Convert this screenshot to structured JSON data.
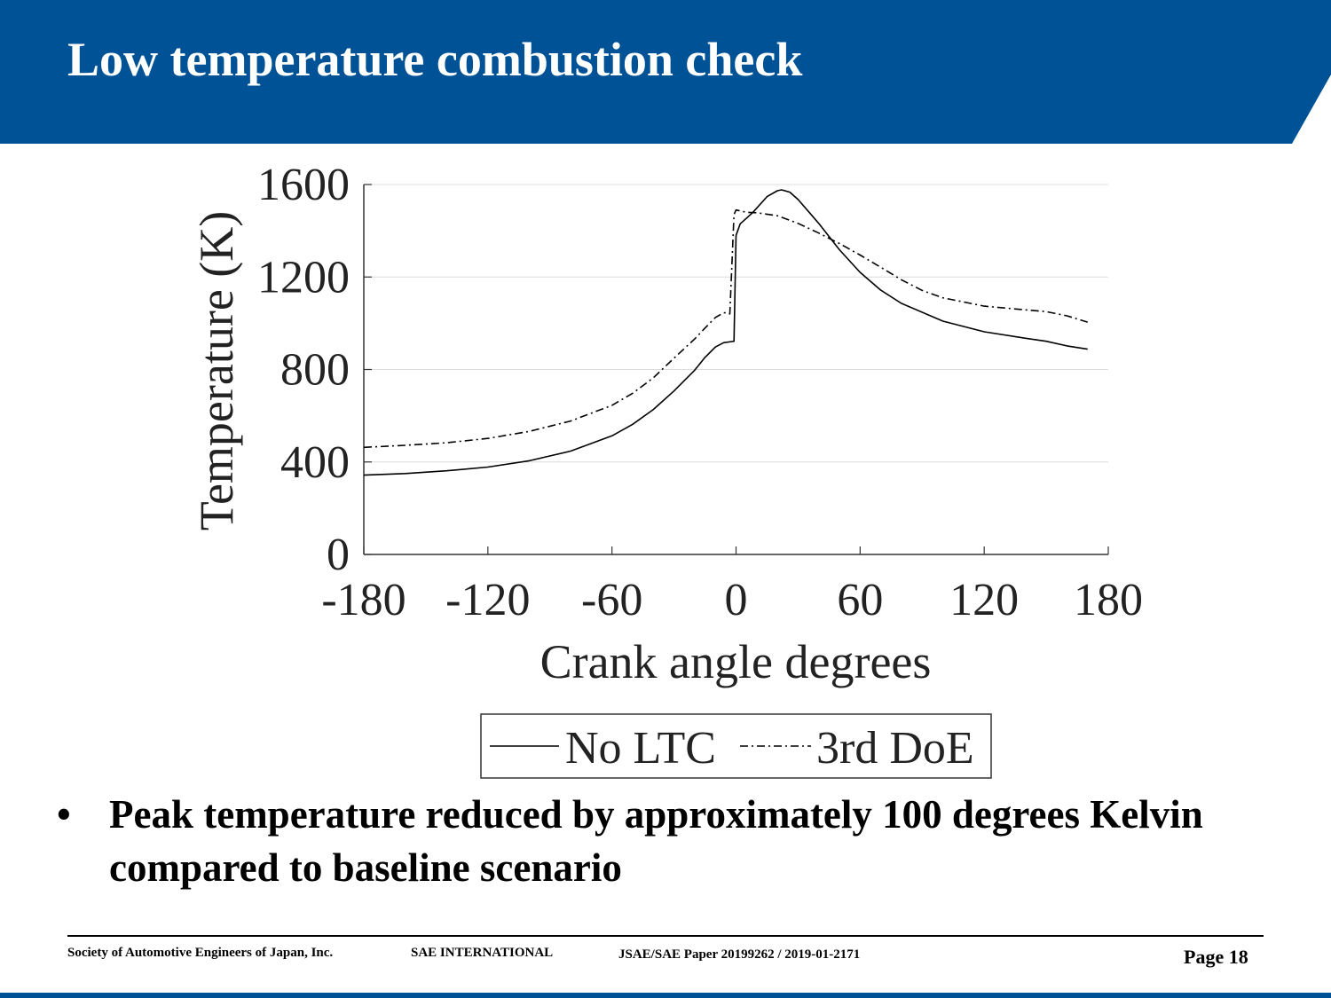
{
  "slide": {
    "title": "Low temperature combustion check",
    "accent_color": "#005296",
    "bullet": "Peak temperature reduced by approximately 100 degrees Kelvin compared to baseline scenario"
  },
  "footer": {
    "org1": "Society of Automotive Engineers of Japan, Inc.",
    "org2": "SAE INTERNATIONAL",
    "paper": "JSAE/SAE  Paper 20199262 / 2019-01-2171",
    "page": "Page 18"
  },
  "chart_data": {
    "type": "line",
    "title": "",
    "xlabel": "Crank angle degrees",
    "ylabel": "Temperature (K)",
    "xlim": [
      -180,
      180
    ],
    "ylim": [
      0,
      1600
    ],
    "xticks": [
      -180,
      -120,
      -60,
      0,
      60,
      120,
      180
    ],
    "yticks": [
      0,
      400,
      800,
      1200,
      1600
    ],
    "grid": "horizontal",
    "legend_position": "bottom",
    "series": [
      {
        "name": "No LTC",
        "style": "solid",
        "color": "#000000",
        "points": [
          [
            -180,
            343
          ],
          [
            -160,
            350
          ],
          [
            -140,
            362
          ],
          [
            -120,
            378
          ],
          [
            -100,
            405
          ],
          [
            -80,
            447
          ],
          [
            -60,
            513
          ],
          [
            -50,
            563
          ],
          [
            -40,
            627
          ],
          [
            -30,
            707
          ],
          [
            -20,
            797
          ],
          [
            -15,
            852
          ],
          [
            -10,
            897
          ],
          [
            -6,
            916
          ],
          [
            -2,
            921
          ],
          [
            -1,
            922
          ],
          [
            0,
            1380
          ],
          [
            2,
            1430
          ],
          [
            8,
            1478
          ],
          [
            15,
            1548
          ],
          [
            20,
            1573
          ],
          [
            22,
            1577
          ],
          [
            26,
            1567
          ],
          [
            30,
            1535
          ],
          [
            40,
            1432
          ],
          [
            50,
            1318
          ],
          [
            60,
            1220
          ],
          [
            70,
            1143
          ],
          [
            80,
            1086
          ],
          [
            100,
            1009
          ],
          [
            120,
            963
          ],
          [
            140,
            935
          ],
          [
            150,
            922
          ],
          [
            160,
            902
          ],
          [
            170,
            888
          ]
        ]
      },
      {
        "name": "3rd DoE",
        "style": "dashdot",
        "color": "#000000",
        "points": [
          [
            -180,
            463
          ],
          [
            -160,
            472
          ],
          [
            -140,
            483
          ],
          [
            -120,
            502
          ],
          [
            -100,
            532
          ],
          [
            -80,
            577
          ],
          [
            -60,
            645
          ],
          [
            -50,
            697
          ],
          [
            -40,
            764
          ],
          [
            -30,
            849
          ],
          [
            -20,
            932
          ],
          [
            -15,
            979
          ],
          [
            -10,
            1025
          ],
          [
            -6,
            1045
          ],
          [
            -4,
            1045
          ],
          [
            -3,
            1040
          ],
          [
            -1,
            1470
          ],
          [
            0,
            1490
          ],
          [
            5,
            1480
          ],
          [
            10,
            1478
          ],
          [
            20,
            1465
          ],
          [
            30,
            1432
          ],
          [
            40,
            1390
          ],
          [
            50,
            1345
          ],
          [
            60,
            1295
          ],
          [
            70,
            1242
          ],
          [
            80,
            1188
          ],
          [
            90,
            1142
          ],
          [
            100,
            1110
          ],
          [
            120,
            1074
          ],
          [
            140,
            1058
          ],
          [
            150,
            1050
          ],
          [
            160,
            1032
          ],
          [
            170,
            1005
          ]
        ]
      }
    ]
  }
}
